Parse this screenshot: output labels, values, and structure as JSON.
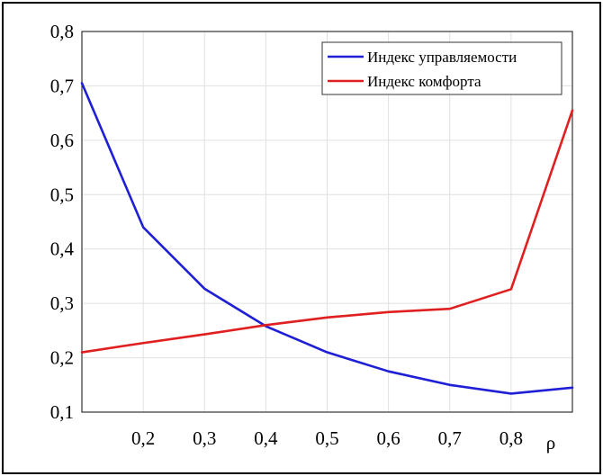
{
  "chart_data": {
    "type": "line",
    "title": "",
    "xlabel": "ρ",
    "ylabel": "",
    "x": [
      0.1,
      0.2,
      0.3,
      0.4,
      0.5,
      0.6,
      0.7,
      0.8,
      0.9
    ],
    "xlim": [
      0.1,
      0.9
    ],
    "ylim": [
      0.1,
      0.8
    ],
    "x_tick_values": [
      0.2,
      0.3,
      0.4,
      0.5,
      0.6,
      0.7,
      0.8
    ],
    "x_tick_labels": [
      "0,2",
      "0,3",
      "0,4",
      "0,5",
      "0,6",
      "0,7",
      "0,8"
    ],
    "y_tick_values": [
      0.1,
      0.2,
      0.3,
      0.4,
      0.5,
      0.6,
      0.7,
      0.8
    ],
    "y_tick_labels": [
      "0,1",
      "0,2",
      "0,3",
      "0,4",
      "0,5",
      "0,6",
      "0,7",
      "0,8"
    ],
    "grid": true,
    "legend_position": "top-right",
    "series": [
      {
        "name": "Индекс управляемости",
        "color": "#1f1fd6",
        "values": [
          0.705,
          0.44,
          0.327,
          0.258,
          0.21,
          0.175,
          0.15,
          0.134,
          0.145
        ]
      },
      {
        "name": "Индекс комфорта",
        "color": "#e02020",
        "values": [
          0.21,
          0.227,
          0.243,
          0.26,
          0.274,
          0.284,
          0.29,
          0.326,
          0.655
        ]
      }
    ]
  }
}
